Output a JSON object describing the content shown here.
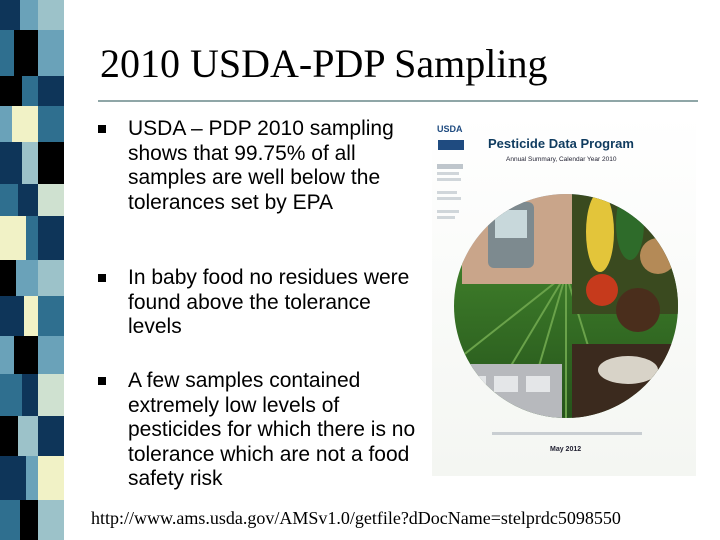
{
  "slide": {
    "title": "2010 USDA-PDP Sampling",
    "bullets": [
      "USDA – PDP 2010 sampling shows that 99.75% of all samples are well below the tolerances set by EPA",
      "In baby food no residues were found above the tolerance levels",
      "A few samples contained extremely low levels of pesticides for which there is no tolerance which are not a food safety risk"
    ],
    "source_url": "http://www.ams.usda.gov/AMSv1.0/getfile?dDocName=stelprdc5098550"
  },
  "report_image": {
    "agency": "USDA",
    "title": "Pesticide Data Program",
    "subtitle": "Annual Summary, Calendar Year 2010",
    "date": "May 2012"
  },
  "colors": {
    "stripe_palette": [
      "#0e3559",
      "#2f6f8f",
      "#6aa2b9",
      "#9cc2c9",
      "#cfe1d0",
      "#f1f2c6",
      "#000000",
      "#ffffff"
    ],
    "title_rule": "#8fa6a7"
  }
}
